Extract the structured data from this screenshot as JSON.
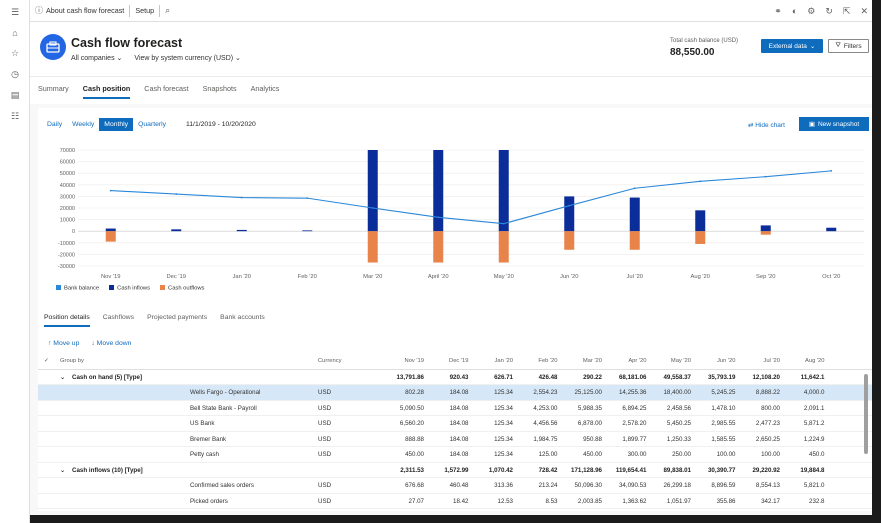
{
  "topbar": {
    "about_label": "About cash flow forecast",
    "setup_label": "Setup"
  },
  "header": {
    "title": "Cash flow forecast",
    "company_filter": "All companies",
    "currency_view": "View by system currency (USD)",
    "total_label": "Total cash balance (USD)",
    "total_value": "88,550.00",
    "external_button": "External data",
    "filters_button": "Filters"
  },
  "tabs": [
    "Summary",
    "Cash position",
    "Cash forecast",
    "Snapshots",
    "Analytics"
  ],
  "periods": [
    "Daily",
    "Weekly",
    "Monthly",
    "Quarterly"
  ],
  "date_range": "11/1/2019 - 10/20/2020",
  "hide_chart_label": "Hide chart",
  "new_snapshot_label": "New snapshot",
  "chart_data": {
    "type": "bar",
    "categories": [
      "Nov '19",
      "Dec '19",
      "Jan '20",
      "Feb '20",
      "Mar '20",
      "April '20",
      "May '20",
      "Jun '20",
      "Jul '20",
      "Aug '20",
      "Sep '20",
      "Oct '20"
    ],
    "ylim": [
      -30000,
      70000
    ],
    "yticks": [
      "70000",
      "60000",
      "50000",
      "40000",
      "30000",
      "20000",
      "10000",
      "0",
      "-10000",
      "-20000",
      "-30000"
    ],
    "series": [
      {
        "name": "Bank balance",
        "type": "line",
        "color": "#2b88d8",
        "values": [
          35000,
          32000,
          29000,
          28500,
          20000,
          12000,
          6500,
          22000,
          37000,
          43000,
          47000,
          52000
        ]
      },
      {
        "name": "Cash inflows",
        "type": "bar",
        "color": "#0b2d9a",
        "values": [
          2300,
          1600,
          1100,
          700,
          70000,
          70000,
          70000,
          30000,
          29000,
          18000,
          5000,
          3000
        ]
      },
      {
        "name": "Cash outflows",
        "type": "bar",
        "color": "#e8834a",
        "values": [
          -9000,
          0,
          0,
          0,
          -27000,
          -27000,
          -27000,
          -16000,
          -16000,
          -11000,
          -3000,
          0
        ]
      }
    ],
    "legend": "bottom-left"
  },
  "detail_tabs": [
    "Position details",
    "Cashflows",
    "Projected payments",
    "Bank accounts"
  ],
  "move_up_label": "Move up",
  "move_down_label": "Move down",
  "grid": {
    "group_by_label": "Group by",
    "currency_label": "Currency",
    "months": [
      "Nov '19",
      "Dec '19",
      "Jan '20",
      "Feb '20",
      "Mar '20",
      "Apr '20",
      "May '20",
      "Jun '20",
      "Jul '20",
      "Aug '20"
    ],
    "rows": [
      {
        "kind": "group",
        "label": "Cash on hand (5) [Type]",
        "currency": "",
        "values": [
          "13,791.86",
          "920.43",
          "626.71",
          "426.48",
          "290.22",
          "68,181.06",
          "49,558.37",
          "35,793.19",
          "12,108.20",
          "11,642.1"
        ]
      },
      {
        "kind": "item",
        "selected": true,
        "label": "Wells Fargo - Operational",
        "currency": "USD",
        "values": [
          "802.28",
          "184.08",
          "125.34",
          "2,554.23",
          "25,125.00",
          "14,255.36",
          "18,400.00",
          "5,245.25",
          "8,888.22",
          "4,000.0"
        ]
      },
      {
        "kind": "item",
        "label": "Bell State Bank - Payroll",
        "currency": "USD",
        "values": [
          "5,090.50",
          "184.08",
          "125.34",
          "4,253.00",
          "5,988.35",
          "6,894.25",
          "2,458.56",
          "1,478.10",
          "800.00",
          "2,091.1"
        ]
      },
      {
        "kind": "item",
        "label": "US Bank",
        "currency": "USD",
        "values": [
          "6,560.20",
          "184.08",
          "125.34",
          "4,456.56",
          "6,878.00",
          "2,578.20",
          "5,450.25",
          "2,985.55",
          "2,477.23",
          "5,871.2"
        ]
      },
      {
        "kind": "item",
        "label": "Bremer Bank",
        "currency": "USD",
        "values": [
          "888.88",
          "184.08",
          "125.34",
          "1,984.75",
          "950.88",
          "1,899.77",
          "1,250.33",
          "1,585.55",
          "2,650.25",
          "1,224.9"
        ]
      },
      {
        "kind": "item",
        "label": "Petty cash",
        "currency": "USD",
        "values": [
          "450.00",
          "184.08",
          "125.34",
          "125.00",
          "450.00",
          "300.00",
          "250.00",
          "100.00",
          "100.00",
          "450.0"
        ]
      },
      {
        "kind": "group",
        "label": "Cash inflows (10) [Type]",
        "currency": "",
        "values": [
          "2,311.53",
          "1,572.99",
          "1,070.42",
          "728.42",
          "171,128.96",
          "119,654.41",
          "89,838.01",
          "30,390.77",
          "29,220.92",
          "19,884.8"
        ]
      },
      {
        "kind": "item",
        "label": "Confirmed sales orders",
        "currency": "USD",
        "values": [
          "676.68",
          "460.48",
          "313.36",
          "213.24",
          "50,096.30",
          "34,090.53",
          "26,299.18",
          "8,896.59",
          "8,554.13",
          "5,821.0"
        ]
      },
      {
        "kind": "item",
        "label": "Picked orders",
        "currency": "USD",
        "values": [
          "27.07",
          "18.42",
          "12.53",
          "8.53",
          "2,003.85",
          "1,363.62",
          "1,051.97",
          "355.86",
          "342.17",
          "232.8"
        ]
      }
    ]
  }
}
